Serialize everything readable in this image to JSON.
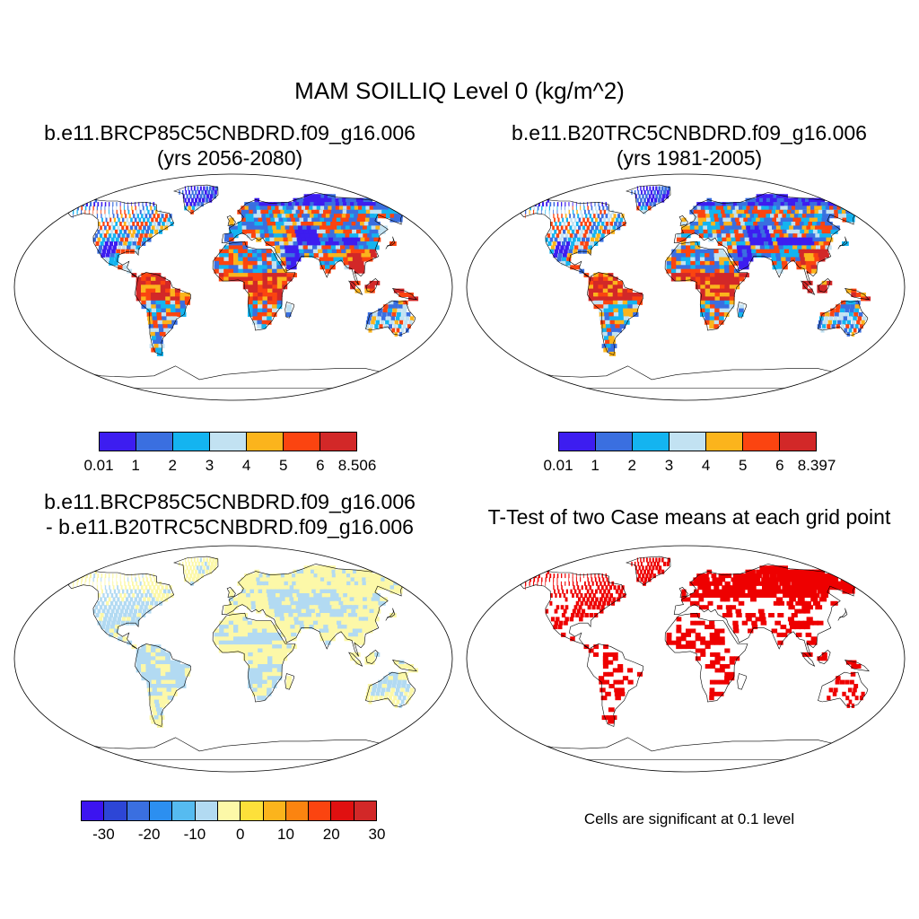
{
  "title": "MAM SOILLIQ Level 0 (kg/m^2)",
  "panels": [
    {
      "title_line1": "b.e11.BRCP85C5CNBDRD.f09_g16.006",
      "title_line2": "(yrs 2056-2080)",
      "colorbar": {
        "colors": [
          "#3d1df0",
          "#3a6fe0",
          "#14b4f0",
          "#c2e2f2",
          "#fbb41c",
          "#fb4410",
          "#d22828"
        ],
        "labels": [
          "0.01",
          "1",
          "2",
          "3",
          "4",
          "5",
          "6",
          "8.506"
        ]
      }
    },
    {
      "title_line1": "b.e11.B20TRC5CNBDRD.f09_g16.006",
      "title_line2": "(yrs 1981-2005)",
      "colorbar": {
        "colors": [
          "#3d1df0",
          "#3a6fe0",
          "#14b4f0",
          "#c2e2f2",
          "#fbb41c",
          "#fb4410",
          "#d22828"
        ],
        "labels": [
          "0.01",
          "1",
          "2",
          "3",
          "4",
          "5",
          "6",
          "8.397"
        ]
      }
    },
    {
      "title_line1": "b.e11.BRCP85C5CNBDRD.f09_g16.006",
      "title_line2": "- b.e11.B20TRC5CNBDRD.f09_g16.006",
      "colorbar": {
        "colors": [
          "#3c14f0",
          "#2d46d6",
          "#3a6fe0",
          "#2c8ff0",
          "#56bbf0",
          "#b2daf2",
          "#fcf8a8",
          "#fde03a",
          "#fbb41c",
          "#fb8410",
          "#fb4410",
          "#e01010",
          "#d22828"
        ],
        "labels": [
          "-30",
          "-20",
          "-10",
          "0",
          "10",
          "20",
          "30"
        ]
      }
    },
    {
      "title_line1": "T-Test of two Case means at each grid point",
      "note": "Cells are significant at 0.1 level"
    }
  ],
  "colors": {
    "ocean": "#ffffff",
    "land_wet": "#d22828",
    "land_dry": "#3d1df0",
    "diff_positive": "#fcf8a8",
    "diff_negative": "#b2daf2",
    "significant": "#ee0000"
  }
}
